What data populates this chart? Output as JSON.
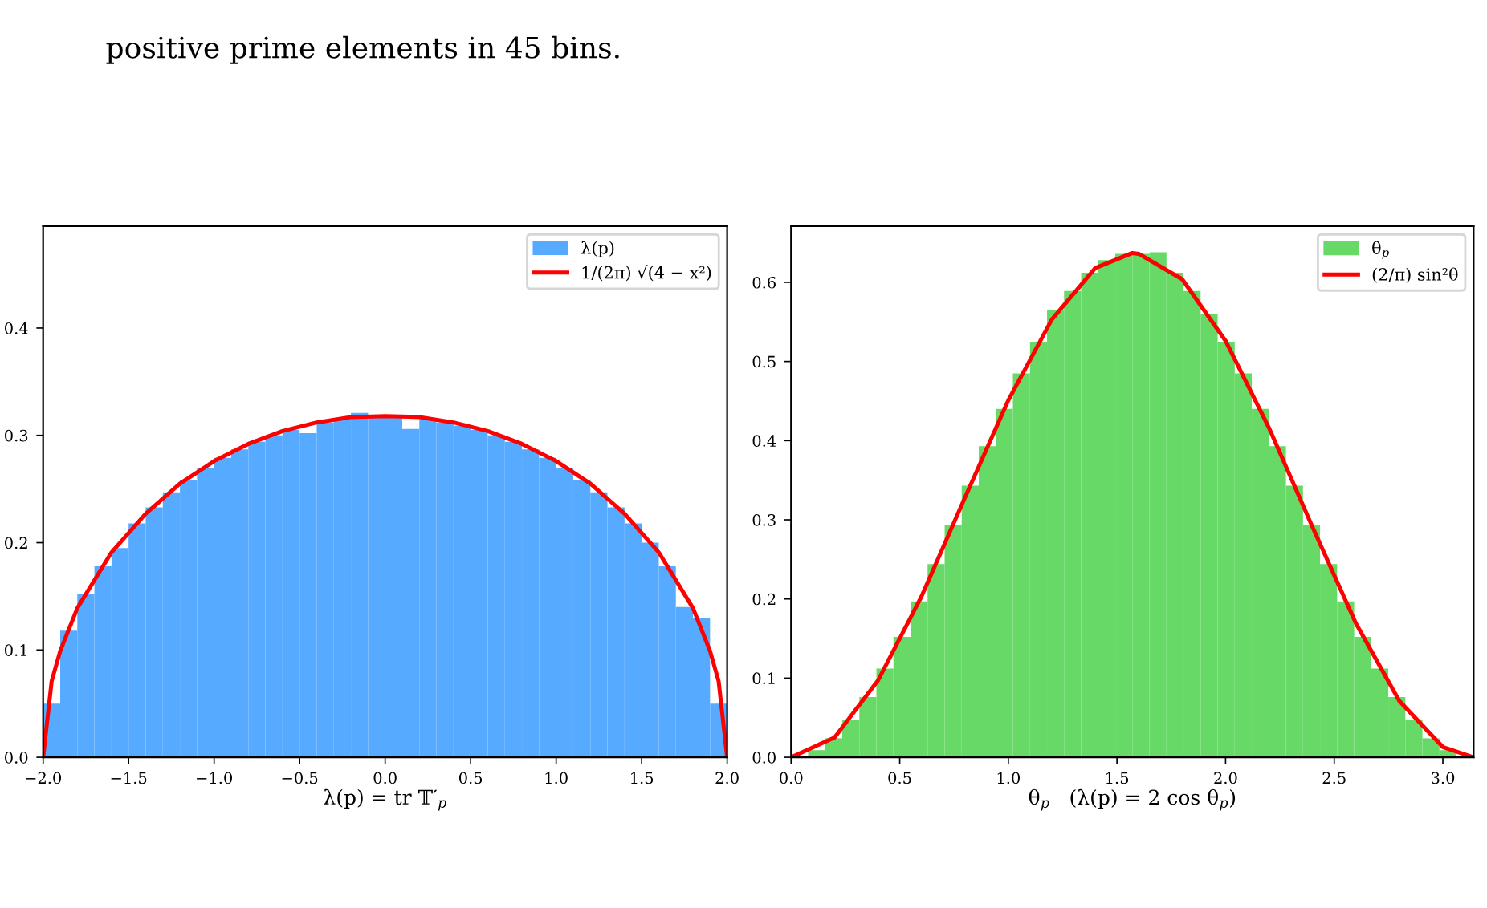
{
  "chart_data": [
    {
      "type": "histogram",
      "xlabel": "λ(p) = tr 𝕋′$_{p}$",
      "annotations": [
        "positive prime elements in 45 bins."
      ],
      "legend": "top right",
      "grid": false,
      "xlim": [
        -2.0,
        2.0
      ],
      "xticks": [
        {
          "value": -2.0,
          "label": "−2.0"
        },
        {
          "value": -1.5,
          "label": "−1.5"
        },
        {
          "value": -1.0,
          "label": "−1.0"
        },
        {
          "value": -0.5,
          "label": "−0.5"
        },
        {
          "value": 0,
          "label": "0.0"
        },
        0.5,
        {
          "value": 1,
          "label": "1.0"
        },
        1.5,
        {
          "value": 2,
          "label": "2.0"
        }
      ],
      "ylim": [
        0.0,
        0.495
      ],
      "yticks": [
        {
          "value": 0,
          "label": "0.0"
        },
        0.1,
        0.2,
        0.3,
        0.4
      ],
      "series": [
        {
          "type": "histogram",
          "name": "λ(p)",
          "color": "#56aaff",
          "bins": [
            -2.0,
            -1.9,
            -1.8,
            -1.7,
            -1.6,
            -1.5,
            -1.4,
            -1.3,
            -1.2,
            -1.1,
            -1.0,
            -0.9,
            -0.8,
            -0.7,
            -0.6,
            -0.5,
            -0.4,
            -0.3,
            -0.2,
            -0.1,
            0.0,
            0.1,
            0.2,
            0.3,
            0.4,
            0.5,
            0.6,
            0.7,
            0.8,
            0.9,
            1.0,
            1.1,
            1.2,
            1.3,
            1.4,
            1.5,
            1.6,
            1.7,
            1.8,
            1.9,
            2.0
          ],
          "values": [
            0.05,
            0.118,
            0.152,
            0.178,
            0.195,
            0.218,
            0.233,
            0.247,
            0.258,
            0.27,
            0.279,
            0.287,
            0.294,
            0.3,
            0.305,
            0.302,
            0.312,
            0.315,
            0.321,
            0.318,
            0.318,
            0.306,
            0.315,
            0.312,
            0.309,
            0.305,
            0.3,
            0.294,
            0.287,
            0.279,
            0.27,
            0.258,
            0.247,
            0.233,
            0.218,
            0.2,
            0.178,
            0.14,
            0.13,
            0.05
          ]
        },
        {
          "type": "line",
          "name": "1/(2π) √(4 − x²)",
          "color": "#ff0000",
          "x": [
            -2.0,
            -1.95,
            -1.9,
            -1.8,
            -1.6,
            -1.4,
            -1.2,
            -1.0,
            -0.8,
            -0.6,
            -0.4,
            -0.2,
            0.0,
            0.2,
            0.4,
            0.6,
            0.8,
            1.0,
            1.2,
            1.4,
            1.6,
            1.8,
            1.9,
            1.95,
            2.0
          ],
          "values": [
            0.0,
            0.071,
            0.099,
            0.139,
            0.191,
            0.227,
            0.255,
            0.276,
            0.292,
            0.304,
            0.312,
            0.317,
            0.318,
            0.317,
            0.312,
            0.304,
            0.292,
            0.276,
            0.255,
            0.227,
            0.191,
            0.139,
            0.099,
            0.071,
            0.0
          ]
        }
      ]
    },
    {
      "type": "histogram",
      "xlabel": "θ$_{p}$   (λ(p) = 2 cos θ$_{p}$)",
      "legend": "top right",
      "grid": false,
      "xlim": [
        0.0,
        3.1416
      ],
      "xticks": [
        {
          "value": 0,
          "label": "0.0"
        },
        0.5,
        {
          "value": 1,
          "label": "1.0"
        },
        1.5,
        {
          "value": 2,
          "label": "2.0"
        },
        2.5,
        {
          "value": 3,
          "label": "3.0"
        }
      ],
      "ylim": [
        0.0,
        0.671
      ],
      "yticks": [
        {
          "value": 0,
          "label": "0.0"
        },
        0.1,
        0.2,
        0.3,
        0.4,
        0.5,
        0.6
      ],
      "series": [
        {
          "type": "histogram",
          "name": "θ$_{p}$",
          "color": "#66d966",
          "bins": [
            0.0,
            0.0785,
            0.1571,
            0.2356,
            0.3142,
            0.3927,
            0.4712,
            0.5498,
            0.6283,
            0.7069,
            0.7854,
            0.8639,
            0.9425,
            1.021,
            1.0996,
            1.1781,
            1.2566,
            1.3352,
            1.4137,
            1.4923,
            1.5708,
            1.6493,
            1.7279,
            1.8064,
            1.885,
            1.9635,
            2.042,
            2.1206,
            2.1991,
            2.2777,
            2.3562,
            2.4347,
            2.5133,
            2.5918,
            2.6704,
            2.7489,
            2.8274,
            2.906,
            2.9845,
            3.0631,
            3.1416
          ],
          "values": [
            0.001,
            0.009,
            0.024,
            0.047,
            0.076,
            0.112,
            0.152,
            0.197,
            0.244,
            0.293,
            0.343,
            0.393,
            0.44,
            0.485,
            0.525,
            0.565,
            0.589,
            0.612,
            0.628,
            0.636,
            0.636,
            0.638,
            0.612,
            0.589,
            0.56,
            0.525,
            0.485,
            0.44,
            0.393,
            0.343,
            0.293,
            0.244,
            0.197,
            0.152,
            0.112,
            0.076,
            0.047,
            0.024,
            0.009,
            0.001
          ]
        },
        {
          "type": "line",
          "name": "(2/π) sin²θ",
          "color": "#ff0000",
          "x": [
            0.0,
            0.2,
            0.4,
            0.6,
            0.8,
            1.0,
            1.2,
            1.4,
            1.5708,
            1.6,
            1.8,
            2.0,
            2.2,
            2.4,
            2.6,
            2.8,
            3.0,
            3.1416
          ],
          "values": [
            0.0,
            0.025,
            0.097,
            0.203,
            0.328,
            0.451,
            0.553,
            0.618,
            0.637,
            0.636,
            0.604,
            0.526,
            0.416,
            0.291,
            0.169,
            0.071,
            0.013,
            0.0
          ]
        }
      ]
    }
  ]
}
